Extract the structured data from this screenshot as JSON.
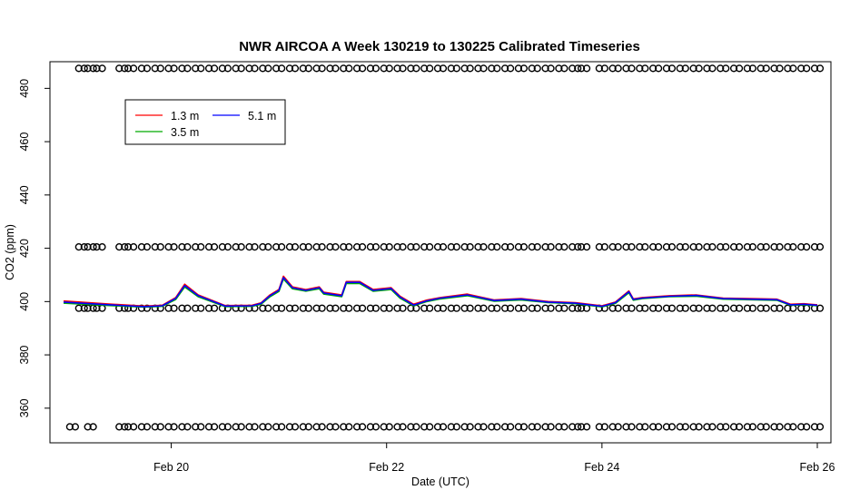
{
  "chart_data": {
    "type": "line",
    "title": "NWR AIRCOA A  Week 130219 to 130225  Calibrated Timeseries",
    "xlabel": "Date (UTC)",
    "ylabel": "CO2 (ppm)",
    "xlim": [
      "2013-02-19T00:00",
      "2013-02-26T00:00"
    ],
    "ylim": [
      347,
      490
    ],
    "x_ticks": [
      {
        "value": "2013-02-20T00:00",
        "label": "Feb 20"
      },
      {
        "value": "2013-02-22T00:00",
        "label": "Feb 22"
      },
      {
        "value": "2013-02-24T00:00",
        "label": "Feb 24"
      },
      {
        "value": "2013-02-26T00:00",
        "label": "Feb 26"
      }
    ],
    "y_ticks": [
      360,
      380,
      400,
      420,
      440,
      460,
      480
    ],
    "legend": {
      "placement": "top-left",
      "entries": [
        {
          "label": "1.3 m",
          "color": "#ff0000"
        },
        {
          "label": "3.5 m",
          "color": "#00aa00"
        },
        {
          "label": "5.1 m",
          "color": "#0000ff"
        }
      ]
    },
    "series": [
      {
        "name": "1.3 m",
        "color": "#ff0000",
        "x": [
          "2013-02-19T00:00",
          "2013-02-19T09:00",
          "2013-02-19T18:00",
          "2013-02-19T22:00",
          "2013-02-20T01:00",
          "2013-02-20T03:00",
          "2013-02-20T06:00",
          "2013-02-20T12:00",
          "2013-02-20T18:00",
          "2013-02-20T20:00",
          "2013-02-20T22:00",
          "2013-02-21T00:00",
          "2013-02-21T01:00",
          "2013-02-21T03:00",
          "2013-02-21T06:00",
          "2013-02-21T09:00",
          "2013-02-21T10:00",
          "2013-02-21T14:00",
          "2013-02-21T15:00",
          "2013-02-21T18:00",
          "2013-02-21T21:00",
          "2013-02-22T01:00",
          "2013-02-22T03:00",
          "2013-02-22T06:00",
          "2013-02-22T09:00",
          "2013-02-22T12:00",
          "2013-02-22T18:00",
          "2013-02-23T00:00",
          "2013-02-23T06:00",
          "2013-02-23T12:00",
          "2013-02-23T18:00",
          "2013-02-24T00:00",
          "2013-02-24T03:00",
          "2013-02-24T06:00",
          "2013-02-24T07:00",
          "2013-02-24T09:00",
          "2013-02-24T15:00",
          "2013-02-24T21:00",
          "2013-02-25T03:00",
          "2013-02-25T09:00",
          "2013-02-25T15:00",
          "2013-02-25T18:00",
          "2013-02-25T21:00",
          "2013-02-26T00:00"
        ],
        "values": [
          400.2,
          399.2,
          398.3,
          398.6,
          401.5,
          406.5,
          402.5,
          398.5,
          398.6,
          399.5,
          402.5,
          404.5,
          409.5,
          405.5,
          404.5,
          405.5,
          403.5,
          402.5,
          407.5,
          407.5,
          404.5,
          405.2,
          402.0,
          399.0,
          400.6,
          401.5,
          402.8,
          400.6,
          401.1,
          400.0,
          399.6,
          398.4,
          399.8,
          404.0,
          401.0,
          401.5,
          402.2,
          402.5,
          401.3,
          401.1,
          400.9,
          399.0,
          399.2,
          398.8
        ]
      },
      {
        "name": "3.5 m",
        "color": "#00aa00",
        "x": [
          "2013-02-19T00:00",
          "2013-02-19T09:00",
          "2013-02-19T18:00",
          "2013-02-19T22:00",
          "2013-02-20T01:00",
          "2013-02-20T03:00",
          "2013-02-20T06:00",
          "2013-02-20T12:00",
          "2013-02-20T18:00",
          "2013-02-20T20:00",
          "2013-02-20T22:00",
          "2013-02-21T00:00",
          "2013-02-21T01:00",
          "2013-02-21T03:00",
          "2013-02-21T06:00",
          "2013-02-21T09:00",
          "2013-02-21T10:00",
          "2013-02-21T14:00",
          "2013-02-21T15:00",
          "2013-02-21T18:00",
          "2013-02-21T21:00",
          "2013-02-22T01:00",
          "2013-02-22T03:00",
          "2013-02-22T06:00",
          "2013-02-22T09:00",
          "2013-02-22T12:00",
          "2013-02-22T18:00",
          "2013-02-23T00:00",
          "2013-02-23T06:00",
          "2013-02-23T12:00",
          "2013-02-23T18:00",
          "2013-02-24T00:00",
          "2013-02-24T03:00",
          "2013-02-24T06:00",
          "2013-02-24T07:00",
          "2013-02-24T09:00",
          "2013-02-24T15:00",
          "2013-02-24T21:00",
          "2013-02-25T03:00",
          "2013-02-25T09:00",
          "2013-02-25T15:00",
          "2013-02-25T18:00",
          "2013-02-25T21:00",
          "2013-02-26T00:00"
        ],
        "values": [
          399.4,
          398.6,
          397.9,
          398.2,
          400.8,
          405.5,
          401.8,
          398.1,
          398.2,
          399.0,
          401.8,
          403.8,
          408.5,
          404.8,
          403.9,
          404.8,
          402.8,
          401.8,
          406.8,
          406.8,
          403.9,
          404.5,
          401.3,
          398.4,
          400.0,
          401.0,
          402.2,
          400.1,
          400.6,
          399.6,
          399.2,
          398.0,
          399.3,
          403.3,
          400.5,
          401.1,
          401.8,
          402.0,
          400.9,
          400.7,
          400.5,
          398.6,
          398.8,
          398.4
        ]
      },
      {
        "name": "5.1 m",
        "color": "#0000ff",
        "x": [
          "2013-02-19T00:00",
          "2013-02-19T09:00",
          "2013-02-19T18:00",
          "2013-02-19T22:00",
          "2013-02-20T01:00",
          "2013-02-20T03:00",
          "2013-02-20T06:00",
          "2013-02-20T12:00",
          "2013-02-20T18:00",
          "2013-02-20T20:00",
          "2013-02-20T22:00",
          "2013-02-21T00:00",
          "2013-02-21T01:00",
          "2013-02-21T03:00",
          "2013-02-21T06:00",
          "2013-02-21T09:00",
          "2013-02-21T10:00",
          "2013-02-21T14:00",
          "2013-02-21T15:00",
          "2013-02-21T18:00",
          "2013-02-21T21:00",
          "2013-02-22T01:00",
          "2013-02-22T03:00",
          "2013-02-22T06:00",
          "2013-02-22T09:00",
          "2013-02-22T12:00",
          "2013-02-22T18:00",
          "2013-02-23T00:00",
          "2013-02-23T06:00",
          "2013-02-23T12:00",
          "2013-02-23T18:00",
          "2013-02-24T00:00",
          "2013-02-24T03:00",
          "2013-02-24T06:00",
          "2013-02-24T07:00",
          "2013-02-24T09:00",
          "2013-02-24T15:00",
          "2013-02-24T21:00",
          "2013-02-25T03:00",
          "2013-02-25T09:00",
          "2013-02-25T15:00",
          "2013-02-25T18:00",
          "2013-02-25T21:00",
          "2013-02-26T00:00"
        ],
        "values": [
          399.8,
          398.9,
          398.1,
          398.4,
          401.2,
          406.0,
          402.2,
          398.3,
          398.4,
          399.3,
          402.2,
          404.2,
          409.0,
          405.2,
          404.2,
          405.2,
          403.2,
          402.2,
          407.2,
          407.2,
          404.2,
          404.9,
          401.7,
          398.7,
          400.3,
          401.3,
          402.5,
          400.4,
          400.9,
          399.8,
          399.4,
          398.2,
          399.6,
          403.7,
          400.8,
          401.3,
          402.0,
          402.3,
          401.1,
          400.9,
          400.7,
          398.8,
          399.0,
          398.6
        ]
      }
    ],
    "marker_rows": [
      {
        "name": "marker-row-487",
        "y": 487.5,
        "x": [
          "2013-02-19T04:00",
          "2013-02-19T06:00",
          "2013-02-19T08:00",
          "2013-02-19T13:00",
          "2013-02-19T15:00",
          "2013-02-19T18:00",
          "2013-02-19T21:00",
          "2013-02-20T00:00",
          "2013-02-20T03:00",
          "2013-02-20T06:00",
          "2013-02-20T09:00",
          "2013-02-20T12:00",
          "2013-02-20T15:00",
          "2013-02-20T18:00",
          "2013-02-20T21:00",
          "2013-02-21T00:00",
          "2013-02-21T03:00",
          "2013-02-21T06:00",
          "2013-02-21T09:00",
          "2013-02-21T12:00",
          "2013-02-21T15:00",
          "2013-02-21T18:00",
          "2013-02-21T21:00",
          "2013-02-22T00:00",
          "2013-02-22T03:00",
          "2013-02-22T06:00",
          "2013-02-22T09:00",
          "2013-02-22T12:00",
          "2013-02-22T15:00",
          "2013-02-22T18:00",
          "2013-02-22T21:00",
          "2013-02-23T00:00",
          "2013-02-23T03:00",
          "2013-02-23T06:00",
          "2013-02-23T09:00",
          "2013-02-23T12:00",
          "2013-02-23T15:00",
          "2013-02-23T18:00",
          "2013-02-23T20:00",
          "2013-02-24T00:00",
          "2013-02-24T03:00",
          "2013-02-24T06:00",
          "2013-02-24T09:00",
          "2013-02-24T12:00",
          "2013-02-24T15:00",
          "2013-02-24T18:00",
          "2013-02-24T21:00",
          "2013-02-25T00:00",
          "2013-02-25T03:00",
          "2013-02-25T06:00",
          "2013-02-25T09:00",
          "2013-02-25T12:00",
          "2013-02-25T15:00",
          "2013-02-25T18:00",
          "2013-02-25T21:00",
          "2013-02-26T00:00"
        ]
      },
      {
        "name": "marker-row-420",
        "y": 420.5,
        "x": [
          "2013-02-19T04:00",
          "2013-02-19T06:00",
          "2013-02-19T08:00",
          "2013-02-19T13:00",
          "2013-02-19T15:00",
          "2013-02-19T18:00",
          "2013-02-19T21:00",
          "2013-02-20T00:00",
          "2013-02-20T03:00",
          "2013-02-20T06:00",
          "2013-02-20T09:00",
          "2013-02-20T12:00",
          "2013-02-20T15:00",
          "2013-02-20T18:00",
          "2013-02-20T21:00",
          "2013-02-21T00:00",
          "2013-02-21T03:00",
          "2013-02-21T06:00",
          "2013-02-21T09:00",
          "2013-02-21T12:00",
          "2013-02-21T15:00",
          "2013-02-21T18:00",
          "2013-02-21T21:00",
          "2013-02-22T00:00",
          "2013-02-22T03:00",
          "2013-02-22T06:00",
          "2013-02-22T09:00",
          "2013-02-22T12:00",
          "2013-02-22T15:00",
          "2013-02-22T18:00",
          "2013-02-22T21:00",
          "2013-02-23T00:00",
          "2013-02-23T03:00",
          "2013-02-23T06:00",
          "2013-02-23T09:00",
          "2013-02-23T12:00",
          "2013-02-23T15:00",
          "2013-02-23T18:00",
          "2013-02-23T20:00",
          "2013-02-24T00:00",
          "2013-02-24T03:00",
          "2013-02-24T06:00",
          "2013-02-24T09:00",
          "2013-02-24T12:00",
          "2013-02-24T15:00",
          "2013-02-24T18:00",
          "2013-02-24T21:00",
          "2013-02-25T00:00",
          "2013-02-25T03:00",
          "2013-02-25T06:00",
          "2013-02-25T09:00",
          "2013-02-25T12:00",
          "2013-02-25T15:00",
          "2013-02-25T18:00",
          "2013-02-25T21:00",
          "2013-02-26T00:00"
        ]
      },
      {
        "name": "marker-row-397",
        "y": 397.5,
        "x": [
          "2013-02-19T04:00",
          "2013-02-19T06:00",
          "2013-02-19T08:00",
          "2013-02-19T13:00",
          "2013-02-19T15:00",
          "2013-02-19T18:00",
          "2013-02-19T21:00",
          "2013-02-20T00:00",
          "2013-02-20T03:00",
          "2013-02-20T06:00",
          "2013-02-20T09:00",
          "2013-02-20T12:00",
          "2013-02-20T15:00",
          "2013-02-20T18:00",
          "2013-02-20T21:00",
          "2013-02-21T00:00",
          "2013-02-21T03:00",
          "2013-02-21T06:00",
          "2013-02-21T09:00",
          "2013-02-21T12:00",
          "2013-02-21T15:00",
          "2013-02-21T18:00",
          "2013-02-21T21:00",
          "2013-02-22T00:00",
          "2013-02-22T03:00",
          "2013-02-22T06:00",
          "2013-02-22T09:00",
          "2013-02-22T12:00",
          "2013-02-22T15:00",
          "2013-02-22T18:00",
          "2013-02-22T21:00",
          "2013-02-23T00:00",
          "2013-02-23T03:00",
          "2013-02-23T06:00",
          "2013-02-23T09:00",
          "2013-02-23T12:00",
          "2013-02-23T15:00",
          "2013-02-23T18:00",
          "2013-02-23T20:00",
          "2013-02-24T00:00",
          "2013-02-24T03:00",
          "2013-02-24T06:00",
          "2013-02-24T09:00",
          "2013-02-24T12:00",
          "2013-02-24T15:00",
          "2013-02-24T18:00",
          "2013-02-24T21:00",
          "2013-02-25T00:00",
          "2013-02-25T03:00",
          "2013-02-25T06:00",
          "2013-02-25T09:00",
          "2013-02-25T12:00",
          "2013-02-25T15:00",
          "2013-02-25T18:00",
          "2013-02-25T21:00",
          "2013-02-26T00:00"
        ]
      },
      {
        "name": "marker-row-353",
        "y": 353,
        "x": [
          "2013-02-19T02:00",
          "2013-02-19T06:00",
          "2013-02-19T13:00",
          "2013-02-19T15:00",
          "2013-02-19T18:00",
          "2013-02-19T21:00",
          "2013-02-20T00:00",
          "2013-02-20T03:00",
          "2013-02-20T06:00",
          "2013-02-20T09:00",
          "2013-02-20T12:00",
          "2013-02-20T15:00",
          "2013-02-20T18:00",
          "2013-02-20T21:00",
          "2013-02-21T00:00",
          "2013-02-21T03:00",
          "2013-02-21T06:00",
          "2013-02-21T09:00",
          "2013-02-21T12:00",
          "2013-02-21T15:00",
          "2013-02-21T18:00",
          "2013-02-21T21:00",
          "2013-02-22T00:00",
          "2013-02-22T03:00",
          "2013-02-22T06:00",
          "2013-02-22T09:00",
          "2013-02-22T12:00",
          "2013-02-22T15:00",
          "2013-02-22T18:00",
          "2013-02-22T21:00",
          "2013-02-23T00:00",
          "2013-02-23T03:00",
          "2013-02-23T06:00",
          "2013-02-23T09:00",
          "2013-02-23T12:00",
          "2013-02-23T15:00",
          "2013-02-23T18:00",
          "2013-02-23T20:00",
          "2013-02-24T00:00",
          "2013-02-24T03:00",
          "2013-02-24T06:00",
          "2013-02-24T09:00",
          "2013-02-24T12:00",
          "2013-02-24T15:00",
          "2013-02-24T18:00",
          "2013-02-24T21:00",
          "2013-02-25T00:00",
          "2013-02-25T03:00",
          "2013-02-25T06:00",
          "2013-02-25T09:00",
          "2013-02-25T12:00",
          "2013-02-25T15:00",
          "2013-02-25T18:00",
          "2013-02-25T21:00",
          "2013-02-26T00:00"
        ]
      }
    ]
  }
}
